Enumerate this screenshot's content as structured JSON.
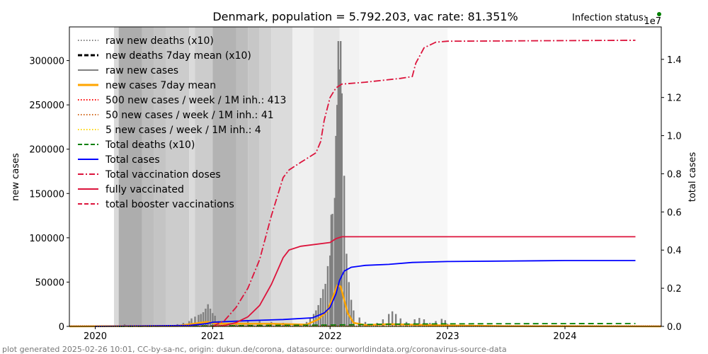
{
  "chart_data": {
    "type": "line",
    "title": "Denmark, population = 5.792.203, vac rate: 81.351%",
    "status_label": "Infection status:",
    "status_color": "#008000",
    "right_axis_offset": "1e7",
    "xlabel": "",
    "ylabel": "new cases",
    "ylabel_right": "total cases",
    "footer": "plot generated 2025-02-26 10:01, CC-by-sa-nc, origin: dukun.de/corona, datasource: ourworldindata.org/coronavirus-source-data",
    "xlim": [
      2019.78,
      2024.82
    ],
    "ylim": [
      0,
      338000
    ],
    "ylim_right": [
      0,
      1.57
    ],
    "x_ticks": [
      2020,
      2021,
      2022,
      2023,
      2024
    ],
    "x_tick_labels": [
      "2020",
      "2021",
      "2022",
      "2023",
      "2024"
    ],
    "y_ticks": [
      0,
      50000,
      100000,
      150000,
      200000,
      250000,
      300000
    ],
    "y_tick_labels": [
      "0",
      "50000",
      "100000",
      "150000",
      "200000",
      "250000",
      "300000"
    ],
    "y_ticks_right": [
      0.0,
      0.2,
      0.4,
      0.6,
      0.8,
      1.0,
      1.2,
      1.4
    ],
    "y_tick_labels_right": [
      "0.0",
      "0.2",
      "0.4",
      "0.6",
      "0.8",
      "1.0",
      "1.2",
      "1.4"
    ],
    "grid": false,
    "legend_position": "top-left",
    "legend": [
      {
        "label": "raw new deaths (x10)",
        "color": "#808080",
        "style": "dotted"
      },
      {
        "label": "new deaths 7day mean (x10)",
        "color": "#000000",
        "style": "dashed"
      },
      {
        "label": "raw new cases",
        "color": "#808080",
        "style": "solid"
      },
      {
        "label": "new cases 7day mean",
        "color": "#FFA500",
        "style": "solid-thick"
      },
      {
        "label": "500 new cases / week / 1M inh.: 413",
        "color": "#FF0000",
        "style": "dotted"
      },
      {
        "label": "50 new cases / week / 1M inh.: 41",
        "color": "#D2691E",
        "style": "dotted"
      },
      {
        "label": "5 new cases / week / 1M inh.: 4",
        "color": "#FFD700",
        "style": "dotted"
      },
      {
        "label": "Total deaths (x10)",
        "color": "#008000",
        "style": "dashed"
      },
      {
        "label": "Total cases",
        "color": "#0000FF",
        "style": "solid"
      },
      {
        "label": "Total vaccination doses",
        "color": "#DC143C",
        "style": "dashdot"
      },
      {
        "label": "fully vaccinated",
        "color": "#DC143C",
        "style": "solid"
      },
      {
        "label": "total booster vaccinations",
        "color": "#DC143C",
        "style": "dashed"
      }
    ],
    "background_bands": [
      {
        "x0": 2019.78,
        "x1": 2020.16,
        "shade": 1.0
      },
      {
        "x0": 2020.16,
        "x1": 2020.2,
        "shade": 0.85
      },
      {
        "x0": 2020.2,
        "x1": 2020.4,
        "shade": 0.68
      },
      {
        "x0": 2020.4,
        "x1": 2020.5,
        "shade": 0.74
      },
      {
        "x0": 2020.5,
        "x1": 2020.6,
        "shade": 0.77
      },
      {
        "x0": 2020.6,
        "x1": 2020.8,
        "shade": 0.8
      },
      {
        "x0": 2020.8,
        "x1": 2020.85,
        "shade": 0.86
      },
      {
        "x0": 2020.85,
        "x1": 2021.0,
        "shade": 0.8
      },
      {
        "x0": 2021.0,
        "x1": 2021.2,
        "shade": 0.7
      },
      {
        "x0": 2021.2,
        "x1": 2021.3,
        "shade": 0.74
      },
      {
        "x0": 2021.3,
        "x1": 2021.4,
        "shade": 0.78
      },
      {
        "x0": 2021.4,
        "x1": 2021.5,
        "shade": 0.82
      },
      {
        "x0": 2021.5,
        "x1": 2021.68,
        "shade": 0.86
      },
      {
        "x0": 2021.68,
        "x1": 2021.86,
        "shade": 0.94
      },
      {
        "x0": 2021.86,
        "x1": 2022.08,
        "shade": 0.9
      },
      {
        "x0": 2022.08,
        "x1": 2022.25,
        "shade": 0.95
      },
      {
        "x0": 2022.25,
        "x1": 2023.0,
        "shade": 0.97
      }
    ],
    "series": [
      {
        "name": "raw new cases",
        "axis": "left",
        "kind": "bars",
        "color": "#808080",
        "points": [
          [
            2020.2,
            1000
          ],
          [
            2020.25,
            2500
          ],
          [
            2020.3,
            1500
          ],
          [
            2020.4,
            800
          ],
          [
            2020.5,
            600
          ],
          [
            2020.6,
            1000
          ],
          [
            2020.7,
            2500
          ],
          [
            2020.75,
            4000
          ],
          [
            2020.8,
            6000
          ],
          [
            2020.82,
            9000
          ],
          [
            2020.85,
            11000
          ],
          [
            2020.88,
            13000
          ],
          [
            2020.9,
            14000
          ],
          [
            2020.92,
            16000
          ],
          [
            2020.94,
            20000
          ],
          [
            2020.96,
            25000
          ],
          [
            2020.98,
            20000
          ],
          [
            2021.0,
            15000
          ],
          [
            2021.02,
            12000
          ],
          [
            2021.05,
            6000
          ],
          [
            2021.1,
            4000
          ],
          [
            2021.2,
            5000
          ],
          [
            2021.3,
            6000
          ],
          [
            2021.4,
            6500
          ],
          [
            2021.5,
            5000
          ],
          [
            2021.6,
            4000
          ],
          [
            2021.7,
            3000
          ],
          [
            2021.75,
            2500
          ],
          [
            2021.8,
            5000
          ],
          [
            2021.83,
            9000
          ],
          [
            2021.86,
            14000
          ],
          [
            2021.88,
            18000
          ],
          [
            2021.9,
            24000
          ],
          [
            2021.92,
            32000
          ],
          [
            2021.94,
            42000
          ],
          [
            2021.96,
            48000
          ],
          [
            2021.98,
            68000
          ],
          [
            2022.0,
            80000
          ],
          [
            2022.01,
            126000
          ],
          [
            2022.02,
            127000
          ],
          [
            2022.04,
            145000
          ],
          [
            2022.05,
            215000
          ],
          [
            2022.06,
            250000
          ],
          [
            2022.07,
            322000
          ],
          [
            2022.08,
            290000
          ],
          [
            2022.09,
            322000
          ],
          [
            2022.1,
            263000
          ],
          [
            2022.12,
            170000
          ],
          [
            2022.14,
            82000
          ],
          [
            2022.16,
            50000
          ],
          [
            2022.18,
            30000
          ],
          [
            2022.2,
            18000
          ],
          [
            2022.25,
            10000
          ],
          [
            2022.3,
            5000
          ],
          [
            2022.4,
            4000
          ],
          [
            2022.45,
            8000
          ],
          [
            2022.5,
            14000
          ],
          [
            2022.53,
            17000
          ],
          [
            2022.56,
            14000
          ],
          [
            2022.6,
            9000
          ],
          [
            2022.65,
            5000
          ],
          [
            2022.72,
            8000
          ],
          [
            2022.76,
            9500
          ],
          [
            2022.8,
            8000
          ],
          [
            2022.85,
            4000
          ],
          [
            2022.9,
            6000
          ],
          [
            2022.95,
            8500
          ],
          [
            2022.98,
            7000
          ],
          [
            2023.0,
            3000
          ],
          [
            2023.1,
            500
          ],
          [
            2023.5,
            300
          ],
          [
            2023.9,
            1000
          ],
          [
            2024.3,
            200
          ]
        ]
      },
      {
        "name": "new cases 7day mean",
        "axis": "left",
        "kind": "line",
        "color": "#FFA500",
        "points": [
          [
            2019.78,
            0
          ],
          [
            2020.7,
            500
          ],
          [
            2020.95,
            5000
          ],
          [
            2021.05,
            3000
          ],
          [
            2021.5,
            3000
          ],
          [
            2021.8,
            2000
          ],
          [
            2021.9,
            8000
          ],
          [
            2021.98,
            18000
          ],
          [
            2022.03,
            35000
          ],
          [
            2022.06,
            46000
          ],
          [
            2022.09,
            45000
          ],
          [
            2022.12,
            30000
          ],
          [
            2022.15,
            15000
          ],
          [
            2022.2,
            4000
          ],
          [
            2022.3,
            1500
          ],
          [
            2022.5,
            2500
          ],
          [
            2023.0,
            1000
          ],
          [
            2023.5,
            300
          ],
          [
            2024.82,
            0
          ]
        ]
      },
      {
        "name": "Total deaths (x10)",
        "axis": "left",
        "kind": "line",
        "color": "#008000",
        "dash": "8,5",
        "points": [
          [
            2020.2,
            0
          ],
          [
            2021.0,
            600
          ],
          [
            2021.5,
            1200
          ],
          [
            2022.0,
            1500
          ],
          [
            2022.5,
            2500
          ],
          [
            2023.0,
            2900
          ],
          [
            2024.0,
            3100
          ],
          [
            2024.6,
            3200
          ]
        ]
      },
      {
        "name": "Total cases",
        "axis": "right",
        "kind": "line",
        "color": "#0000FF",
        "points": [
          [
            2020.0,
            0
          ],
          [
            2020.8,
            0.005
          ],
          [
            2020.95,
            0.015
          ],
          [
            2021.0,
            0.022
          ],
          [
            2021.3,
            0.03
          ],
          [
            2021.6,
            0.036
          ],
          [
            2021.85,
            0.045
          ],
          [
            2021.95,
            0.07
          ],
          [
            2022.0,
            0.1
          ],
          [
            2022.05,
            0.17
          ],
          [
            2022.08,
            0.24
          ],
          [
            2022.12,
            0.29
          ],
          [
            2022.18,
            0.31
          ],
          [
            2022.3,
            0.32
          ],
          [
            2022.5,
            0.325
          ],
          [
            2022.7,
            0.335
          ],
          [
            2023.0,
            0.34
          ],
          [
            2024.0,
            0.345
          ],
          [
            2024.6,
            0.345
          ]
        ]
      },
      {
        "name": "Total vaccination doses",
        "axis": "right",
        "kind": "line",
        "color": "#DC143C",
        "dash": "10,3,2,3",
        "points": [
          [
            2021.0,
            0.0
          ],
          [
            2021.1,
            0.03
          ],
          [
            2021.2,
            0.1
          ],
          [
            2021.3,
            0.2
          ],
          [
            2021.4,
            0.35
          ],
          [
            2021.5,
            0.58
          ],
          [
            2021.6,
            0.78
          ],
          [
            2021.65,
            0.82
          ],
          [
            2021.75,
            0.86
          ],
          [
            2021.88,
            0.91
          ],
          [
            2021.92,
            0.97
          ],
          [
            2021.95,
            1.08
          ],
          [
            2022.0,
            1.2
          ],
          [
            2022.05,
            1.25
          ],
          [
            2022.1,
            1.27
          ],
          [
            2022.3,
            1.28
          ],
          [
            2022.6,
            1.3
          ],
          [
            2022.7,
            1.31
          ],
          [
            2022.73,
            1.38
          ],
          [
            2022.8,
            1.46
          ],
          [
            2022.9,
            1.49
          ],
          [
            2023.0,
            1.495
          ],
          [
            2024.6,
            1.5
          ]
        ]
      },
      {
        "name": "fully vaccinated",
        "axis": "right",
        "kind": "line",
        "color": "#DC143C",
        "points": [
          [
            2021.0,
            0.0
          ],
          [
            2021.1,
            0.005
          ],
          [
            2021.2,
            0.02
          ],
          [
            2021.3,
            0.05
          ],
          [
            2021.4,
            0.11
          ],
          [
            2021.5,
            0.22
          ],
          [
            2021.6,
            0.36
          ],
          [
            2021.65,
            0.4
          ],
          [
            2021.75,
            0.42
          ],
          [
            2022.0,
            0.44
          ],
          [
            2022.05,
            0.46
          ],
          [
            2022.1,
            0.47
          ],
          [
            2023.0,
            0.47
          ],
          [
            2024.6,
            0.47
          ]
        ]
      },
      {
        "name": "500 new cases / week / 1M inh.: 413",
        "axis": "left",
        "kind": "line",
        "color": "#FF0000",
        "dash": "1,2",
        "points": [
          [
            2019.78,
            413
          ],
          [
            2024.82,
            413
          ]
        ]
      },
      {
        "name": "50 new cases / week / 1M inh.: 41",
        "axis": "left",
        "kind": "line",
        "color": "#D2691E",
        "dash": "1,2",
        "points": [
          [
            2019.78,
            41
          ],
          [
            2024.82,
            41
          ]
        ]
      },
      {
        "name": "5 new cases / week / 1M inh.: 4",
        "axis": "left",
        "kind": "line",
        "color": "#FFD700",
        "dash": "1,2",
        "points": [
          [
            2019.78,
            4
          ],
          [
            2024.82,
            4
          ]
        ]
      }
    ]
  }
}
